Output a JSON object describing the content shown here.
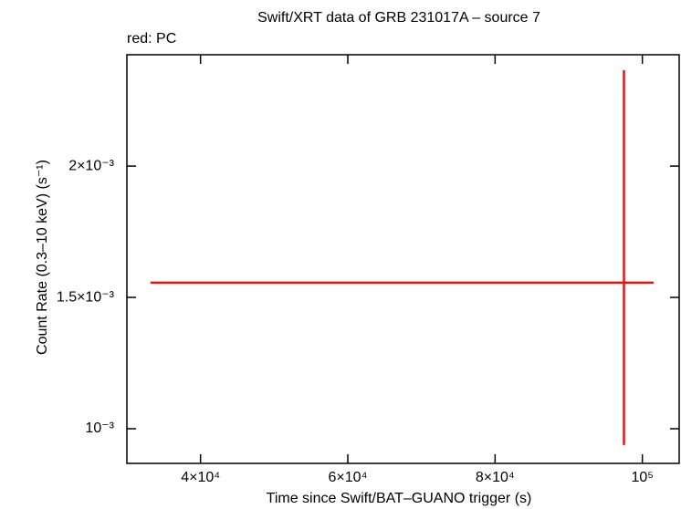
{
  "chart_data": {
    "type": "errorbar",
    "title": "Swift/XRT data of GRB 231017A – source 7",
    "annotation": "red: PC",
    "x_label": "Time since Swift/BAT–GUANO trigger (s)",
    "y_label": "Count Rate (0.3–10 keV) (s⁻¹)",
    "xlim": [
      30000,
      105000
    ],
    "ylim": [
      0.000868,
      0.002424
    ],
    "xticks": [
      {
        "value": 40000,
        "label": "4×10⁴"
      },
      {
        "value": 60000,
        "label": "6×10⁴"
      },
      {
        "value": 80000,
        "label": "8×10⁴"
      },
      {
        "value": 100000,
        "label": "10⁵"
      }
    ],
    "yticks": [
      {
        "value": 0.001,
        "label": "10⁻³"
      },
      {
        "value": 0.0015,
        "label": "1.5×10⁻³"
      },
      {
        "value": 0.002,
        "label": "2×10⁻³"
      }
    ],
    "series": [
      {
        "color": "#e8140f",
        "x": [
          97500
        ],
        "values": [
          0.001556
        ],
        "xerr_low": [
          64300
        ],
        "xerr_high": [
          4050
        ],
        "yerr_low": [
          0.000618
        ],
        "yerr_high": [
          0.000809
        ]
      }
    ]
  }
}
